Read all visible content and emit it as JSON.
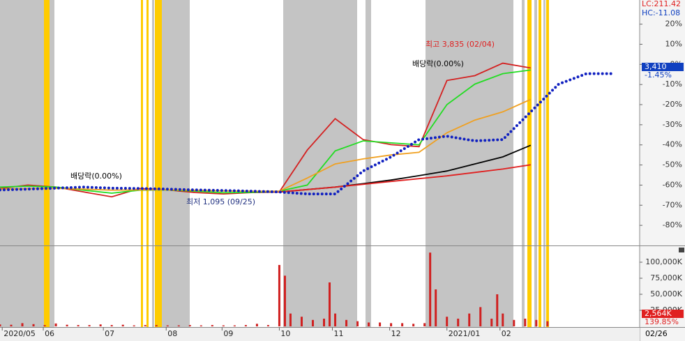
{
  "chart_data": [
    {
      "type": "line",
      "header": [
        "LC:211.42",
        "HC:-11.08"
      ],
      "x": [
        0,
        10,
        20,
        30,
        40,
        50,
        60,
        70,
        80,
        90,
        100,
        110,
        120,
        130,
        140,
        150,
        160,
        170,
        180,
        190,
        200,
        210,
        220
      ],
      "xlim": [
        0,
        229
      ],
      "xticks": [
        {
          "value": 0.8,
          "label": "2020/05"
        },
        {
          "value": 15.5,
          "label": "06"
        },
        {
          "value": 37,
          "label": "07"
        },
        {
          "value": 59.5,
          "label": "08"
        },
        {
          "value": 79.5,
          "label": "09"
        },
        {
          "value": 100,
          "label": "10"
        },
        {
          "value": 119,
          "label": "11"
        },
        {
          "value": 139.5,
          "label": "12"
        },
        {
          "value": 160,
          "label": "2021/01"
        },
        {
          "value": 179,
          "label": "02"
        }
      ],
      "last_date": "02/26",
      "ylim": [
        -90,
        32
      ],
      "yticks": [
        {
          "value": 20,
          "label": "20%"
        },
        {
          "value": 10,
          "label": "10%"
        },
        {
          "value": 0,
          "label": "0%"
        },
        {
          "value": -10,
          "label": "-10%"
        },
        {
          "value": -20,
          "label": "-20%"
        },
        {
          "value": -30,
          "label": "-30%"
        },
        {
          "value": -40,
          "label": "-40%"
        },
        {
          "value": -50,
          "label": "-50%"
        },
        {
          "value": -60,
          "label": "-60%"
        },
        {
          "value": -70,
          "label": "-70%"
        },
        {
          "value": -80,
          "label": "-80%"
        }
      ],
      "current_labels": [
        "3,410",
        "-1.45%"
      ],
      "series": [
        {
          "color": "#d42020",
          "style": "solid",
          "values": [
            -61.7,
            -60,
            -61,
            -63.4,
            -65.8,
            -61.7,
            -62.4,
            -63.7,
            -64.4,
            -63.7,
            -63.4,
            -42.6,
            -27,
            -37.4,
            -39.9,
            -40.9,
            -8,
            -5.6,
            0.6,
            -1.8,
            null,
            null,
            null
          ]
        },
        {
          "color": "#22dd22",
          "style": "solid",
          "values": [
            -61,
            -60.5,
            -61,
            -62.5,
            -64,
            -62.5,
            -62.4,
            -63,
            -63.8,
            -63.6,
            -63,
            -60,
            -43,
            -38,
            -39,
            -40,
            -20,
            -9.8,
            -4.6,
            -2.8,
            null,
            null,
            null
          ]
        },
        {
          "color": "#f0a020",
          "style": "solid",
          "values": [
            -62,
            -61.8,
            -61.6,
            -62,
            -62.5,
            -62.4,
            -62.3,
            -62.6,
            -62.9,
            -63,
            -63,
            -56.5,
            -49.5,
            -47,
            -45,
            -43.7,
            -34,
            -27.7,
            -23.6,
            -17.4,
            null,
            null,
            null
          ]
        },
        {
          "color": "#000000",
          "style": "solid",
          "values": [
            null,
            null,
            null,
            null,
            null,
            null,
            null,
            null,
            null,
            null,
            -63.4,
            -62.2,
            -61,
            -59.3,
            -57.5,
            -55.3,
            -53,
            -49.5,
            -46,
            -40.2,
            null,
            null,
            null
          ]
        },
        {
          "color": "#e02020",
          "style": "solid",
          "values": [
            null,
            null,
            null,
            null,
            null,
            null,
            null,
            null,
            null,
            null,
            -63.4,
            -62.2,
            -61,
            -59.6,
            -58.2,
            -56.8,
            -55.4,
            -53.7,
            -52,
            -49.9,
            null,
            null,
            null
          ]
        },
        {
          "color": "#1020c0",
          "style": "dotted",
          "values": [
            -62.4,
            -62,
            -61.5,
            -61,
            -61.5,
            -61.7,
            -62,
            -62.4,
            -62.7,
            -63,
            -63.4,
            -64.4,
            -64.4,
            -53,
            -46,
            -37.4,
            -35.7,
            -38,
            -37.4,
            -23.6,
            -9.8,
            -4.6,
            -4.6
          ]
        }
      ],
      "annotations": [
        {
          "text": "최고 3,835 (02/04)",
          "color": "#e02020"
        },
        {
          "text": "최저 1,095 (09/25)",
          "color": "#203080"
        },
        {
          "text": "배당락(0.00%)",
          "color": "#000000"
        },
        {
          "text": "배당락(0.00%)",
          "color": "#000000"
        }
      ]
    },
    {
      "type": "bar",
      "x": [
        0,
        4,
        8,
        12,
        16,
        20,
        24,
        28,
        32,
        36,
        40,
        44,
        48,
        52,
        56,
        60,
        64,
        68,
        72,
        76,
        80,
        84,
        88,
        92,
        96,
        100,
        102,
        104,
        108,
        112,
        116,
        118,
        120,
        124,
        128,
        132,
        136,
        140,
        144,
        148,
        152,
        154,
        156,
        160,
        164,
        168,
        172,
        176,
        178,
        180,
        184,
        188,
        192,
        196
      ],
      "values": [
        3000,
        2500,
        5000,
        3500,
        2000,
        4500,
        2500,
        2000,
        2000,
        3000,
        2000,
        2500,
        1500,
        2000,
        2000,
        1500,
        1500,
        2000,
        1500,
        2000,
        1500,
        1500,
        2000,
        4000,
        2000,
        95700,
        79000,
        20000,
        15000,
        10000,
        12000,
        68500,
        20000,
        10000,
        8000,
        6000,
        6000,
        5000,
        5000,
        4000,
        5000,
        115000,
        57600,
        15000,
        12000,
        20000,
        30000,
        12000,
        50000,
        20000,
        10000,
        12000,
        10000,
        8000
      ],
      "color": "#d02020",
      "ylim": [
        0,
        125000
      ],
      "yticks": [
        {
          "value": 100000,
          "label": "100,000K"
        },
        {
          "value": 75000,
          "label": "75,000K"
        },
        {
          "value": 50000,
          "label": "50,000K"
        },
        {
          "value": 25000,
          "label": "25,000K"
        }
      ],
      "current_labels": [
        "2,564K",
        "139.85%"
      ]
    }
  ]
}
